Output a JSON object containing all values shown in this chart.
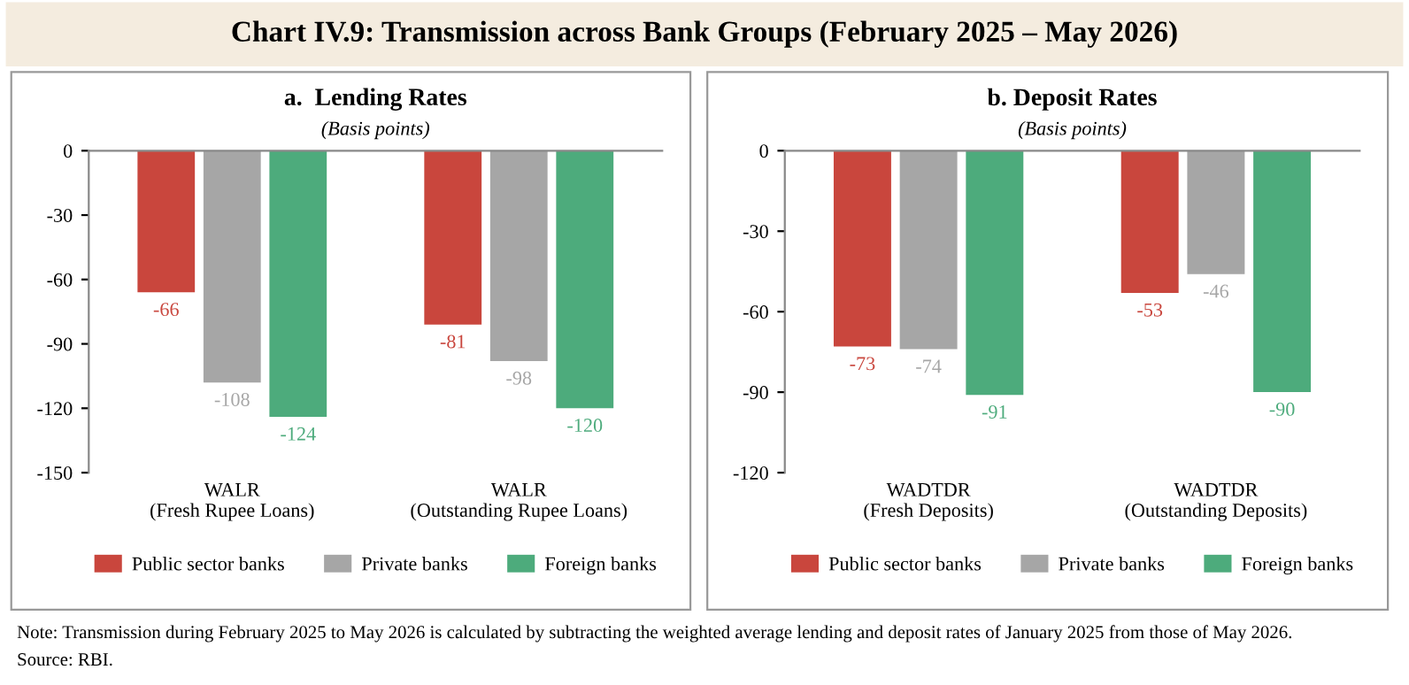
{
  "chart_data": [
    {
      "type": "bar",
      "title": "a.  Lending Rates",
      "subtitle": "(Basis points)",
      "categories": [
        "WALR\n(Fresh Rupee Loans)",
        "WALR\n(Outstanding Rupee Loans)"
      ],
      "series": [
        {
          "name": "Public sector banks",
          "color": "#c9463d",
          "values": [
            -66,
            -81
          ]
        },
        {
          "name": "Private banks",
          "color": "#a6a6a6",
          "values": [
            -108,
            -98
          ]
        },
        {
          "name": "Foreign banks",
          "color": "#4dab7c",
          "values": [
            -124,
            -120
          ]
        }
      ],
      "ylim": [
        -150,
        0
      ],
      "yticks": [
        -150,
        -120,
        -90,
        -60,
        -30,
        0
      ],
      "data_labels": true,
      "legend": "bottom"
    },
    {
      "type": "bar",
      "title": "b. Deposit Rates",
      "subtitle": "(Basis points)",
      "categories": [
        "WADTDR\n(Fresh Deposits)",
        "WADTDR\n(Outstanding Deposits)"
      ],
      "series": [
        {
          "name": "Public sector banks",
          "color": "#c9463d",
          "values": [
            -73,
            -53
          ]
        },
        {
          "name": "Private banks",
          "color": "#a6a6a6",
          "values": [
            -74,
            -46
          ]
        },
        {
          "name": "Foreign banks",
          "color": "#4dab7c",
          "values": [
            -91,
            -90
          ]
        }
      ],
      "ylim": [
        -120,
        0
      ],
      "yticks": [
        -120,
        -90,
        -60,
        -30,
        0
      ],
      "data_labels": true,
      "legend": "bottom"
    },
    {
      "type": "other",
      "title": "Chart IV.9: Transmission across Bank Groups (February 2025 – May 2026)",
      "annotations": [
        "Note: Transmission during February 2025 to May 2026 is calculated by subtracting the weighted average lending and deposit rates of January 2025 from those of May 2026.",
        "Source: RBI."
      ]
    }
  ]
}
